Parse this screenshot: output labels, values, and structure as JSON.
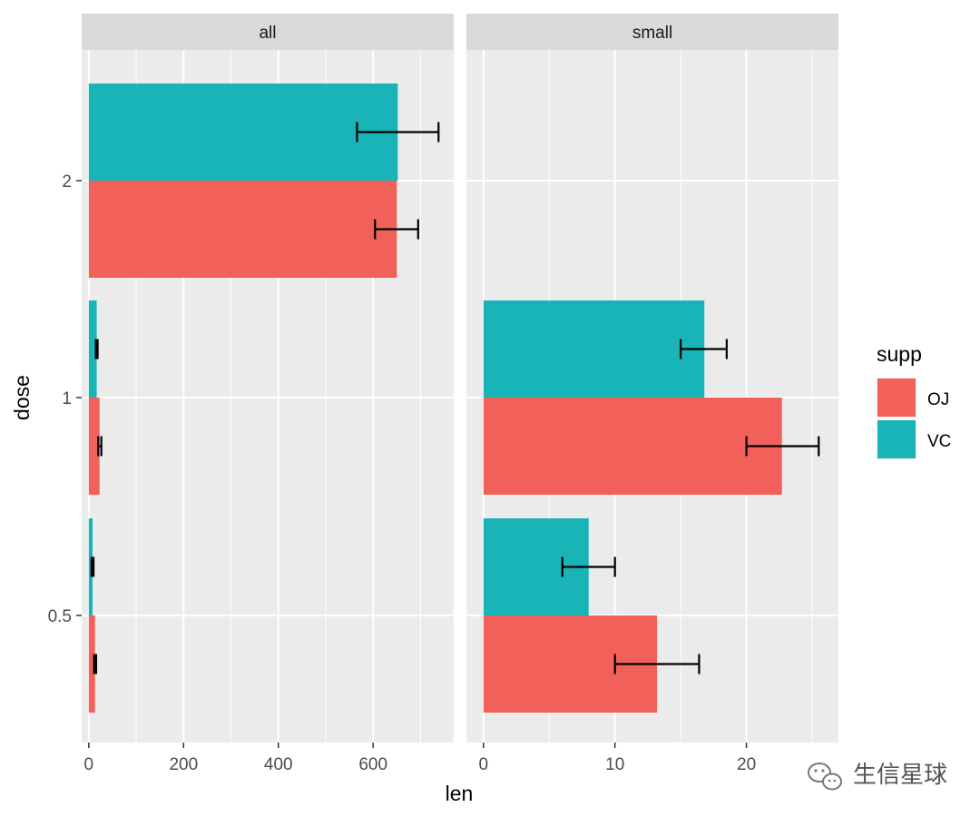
{
  "chart_data": {
    "type": "bar",
    "orientation": "horizontal",
    "facet_variable": "none printed",
    "facets": [
      "all",
      "small"
    ],
    "y_variable": "dose",
    "ylabel": "dose",
    "xlabel": "len",
    "y_categories": [
      "0.5",
      "1",
      "2"
    ],
    "grid": true,
    "legend": {
      "title": "supp",
      "placement": "right",
      "entries": [
        {
          "label": "OJ",
          "color": "#F8766D"
        },
        {
          "label": "VC",
          "color": "#00BFC4"
        }
      ]
    },
    "colors": {
      "OJ": "#F2605A",
      "VC": "#19B4B8"
    },
    "panels": [
      {
        "facet": "all",
        "xlim": [
          -15,
          770
        ],
        "x_ticks": [
          0,
          200,
          400,
          600
        ],
        "x_minor_ticks": [
          100,
          300,
          500,
          700
        ],
        "series": [
          {
            "name": "OJ",
            "dose": [
              "0.5",
              "1",
              "2"
            ],
            "values": [
              13.2,
              22.7,
              650
            ],
            "error_low": [
              11.3,
              20.0,
              604
            ],
            "error_high": [
              15.5,
              26.5,
              695
            ]
          },
          {
            "name": "VC",
            "dose": [
              "0.5",
              "1",
              "2"
            ],
            "values": [
              8.0,
              16.8,
              652
            ],
            "error_low": [
              6.0,
              15.0,
              566
            ],
            "error_high": [
              10.0,
              18.7,
              738
            ]
          }
        ]
      },
      {
        "facet": "small",
        "xlim": [
          -1.3,
          27.0
        ],
        "x_ticks": [
          0,
          10,
          20
        ],
        "x_minor_ticks": [
          5,
          15,
          25
        ],
        "series": [
          {
            "name": "OJ",
            "dose": [
              "0.5",
              "1",
              "2"
            ],
            "values": [
              13.2,
              22.7,
              null
            ],
            "error_low": [
              10.0,
              20.0,
              null
            ],
            "error_high": [
              16.4,
              25.5,
              null
            ]
          },
          {
            "name": "VC",
            "dose": [
              "0.5",
              "1",
              "2"
            ],
            "values": [
              8.0,
              16.8,
              null
            ],
            "error_low": [
              6.0,
              15.0,
              null
            ],
            "error_high": [
              10.0,
              18.5,
              null
            ]
          }
        ]
      }
    ]
  },
  "watermark": {
    "text": "生信星球",
    "icon": "wechat-icon"
  }
}
